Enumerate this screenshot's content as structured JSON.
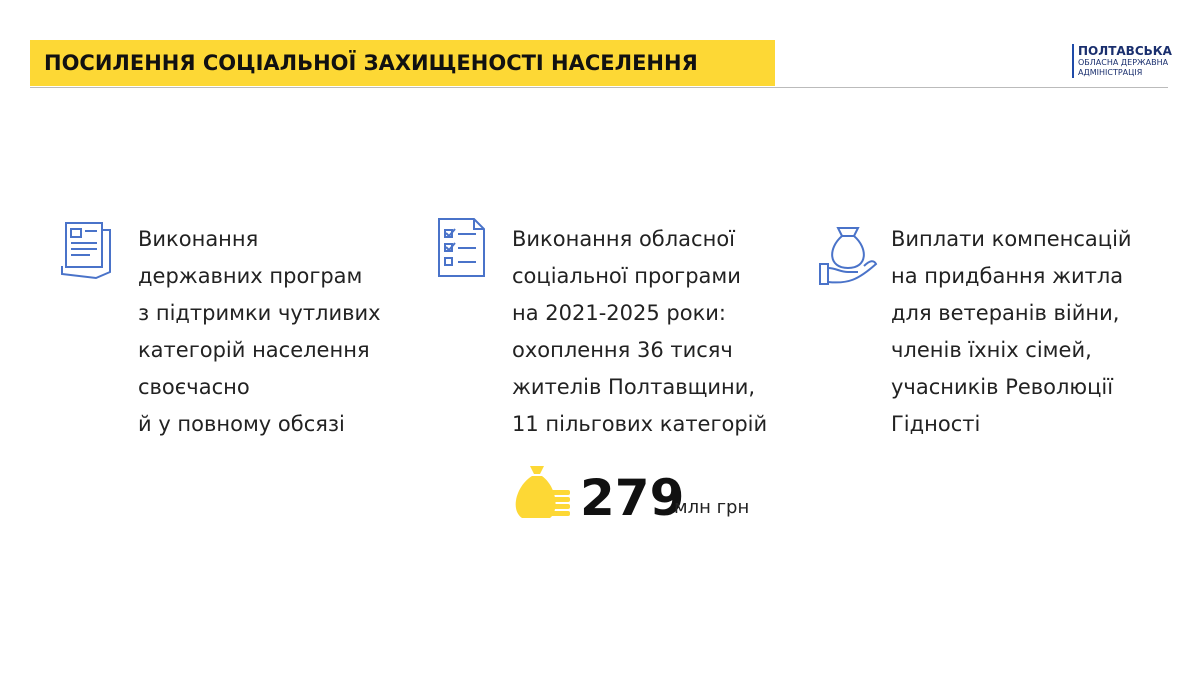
{
  "header": {
    "title": "ПОСИЛЕННЯ СОЦІАЛЬНОЇ ЗАХИЩЕНОСТІ НАСЕЛЕННЯ",
    "logo": [
      "ПОЛТАВСЬКА",
      "ОБЛАСНА ДЕРЖАВНА",
      "АДМІНІСТРАЦІЯ"
    ]
  },
  "columns": [
    {
      "lines": [
        "Виконання",
        "державних програм",
        "з підтримки чутливих",
        "категорій населення",
        "своєчасно",
        "й у повному обсязі"
      ]
    },
    {
      "lines": [
        "Виконання обласної",
        "соціальної програми",
        "на 2021-2025 роки:",
        "охоплення 36 тисяч",
        "жителів Полтавщини,",
        "11 пільгових категорій"
      ],
      "amount": {
        "value": 279,
        "unit": "млн грн"
      }
    },
    {
      "lines": [
        "Виплати компенсацій",
        "на придбання житла",
        "для ветеранів війни,",
        "членів їхніх сімей,",
        "учасників Революції",
        "Гідності"
      ]
    }
  ]
}
